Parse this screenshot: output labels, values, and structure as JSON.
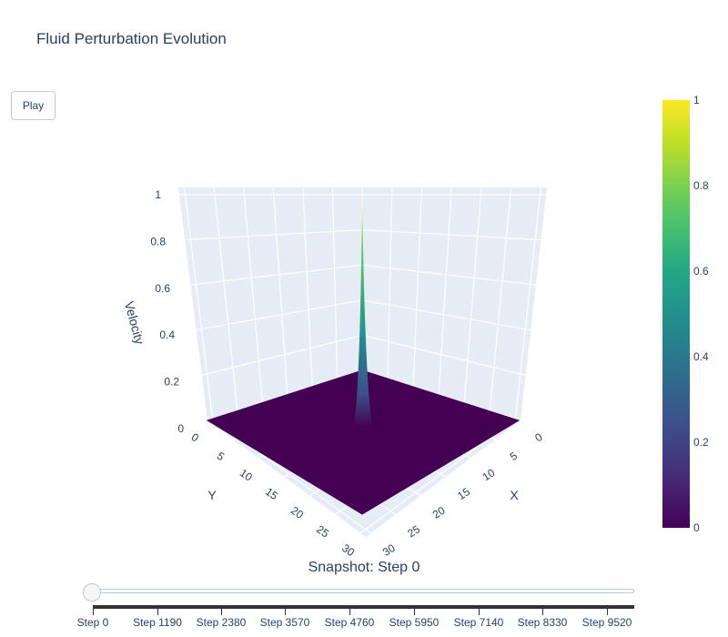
{
  "title": "Fluid Perturbation Evolution",
  "play_button": "Play",
  "slider": {
    "current_label": "Snapshot: Step 0",
    "steps": [
      "Step 0",
      "Step 1190",
      "Step 2380",
      "Step 3570",
      "Step 4760",
      "Step 5950",
      "Step 7140",
      "Step 8330",
      "Step 9520"
    ]
  },
  "colorbar": {
    "ticks": [
      "0",
      "0.2",
      "0.4",
      "0.6",
      "0.8",
      "1"
    ],
    "colorscale": "Viridis"
  },
  "chart_data": {
    "type": "surface",
    "title": "Fluid Perturbation Evolution",
    "xlabel": "X",
    "ylabel": "Y",
    "zlabel": "Velocity",
    "x_ticks": [
      "0",
      "5",
      "10",
      "15",
      "20",
      "25",
      "30"
    ],
    "y_ticks": [
      "0",
      "5",
      "10",
      "15",
      "20",
      "25",
      "30"
    ],
    "z_ticks": [
      "0",
      "0.2",
      "0.4",
      "0.6",
      "0.8",
      "1"
    ],
    "xlim": [
      0,
      31
    ],
    "ylim": [
      0,
      31
    ],
    "zlim": [
      0,
      1
    ],
    "surface": {
      "description": "flat surface at 0 with single sharp peak",
      "peak_x": 15,
      "peak_y": 15,
      "peak_value": 1,
      "base_value": 0
    },
    "colors": {
      "low": "#440154",
      "high": "#fde725"
    }
  }
}
